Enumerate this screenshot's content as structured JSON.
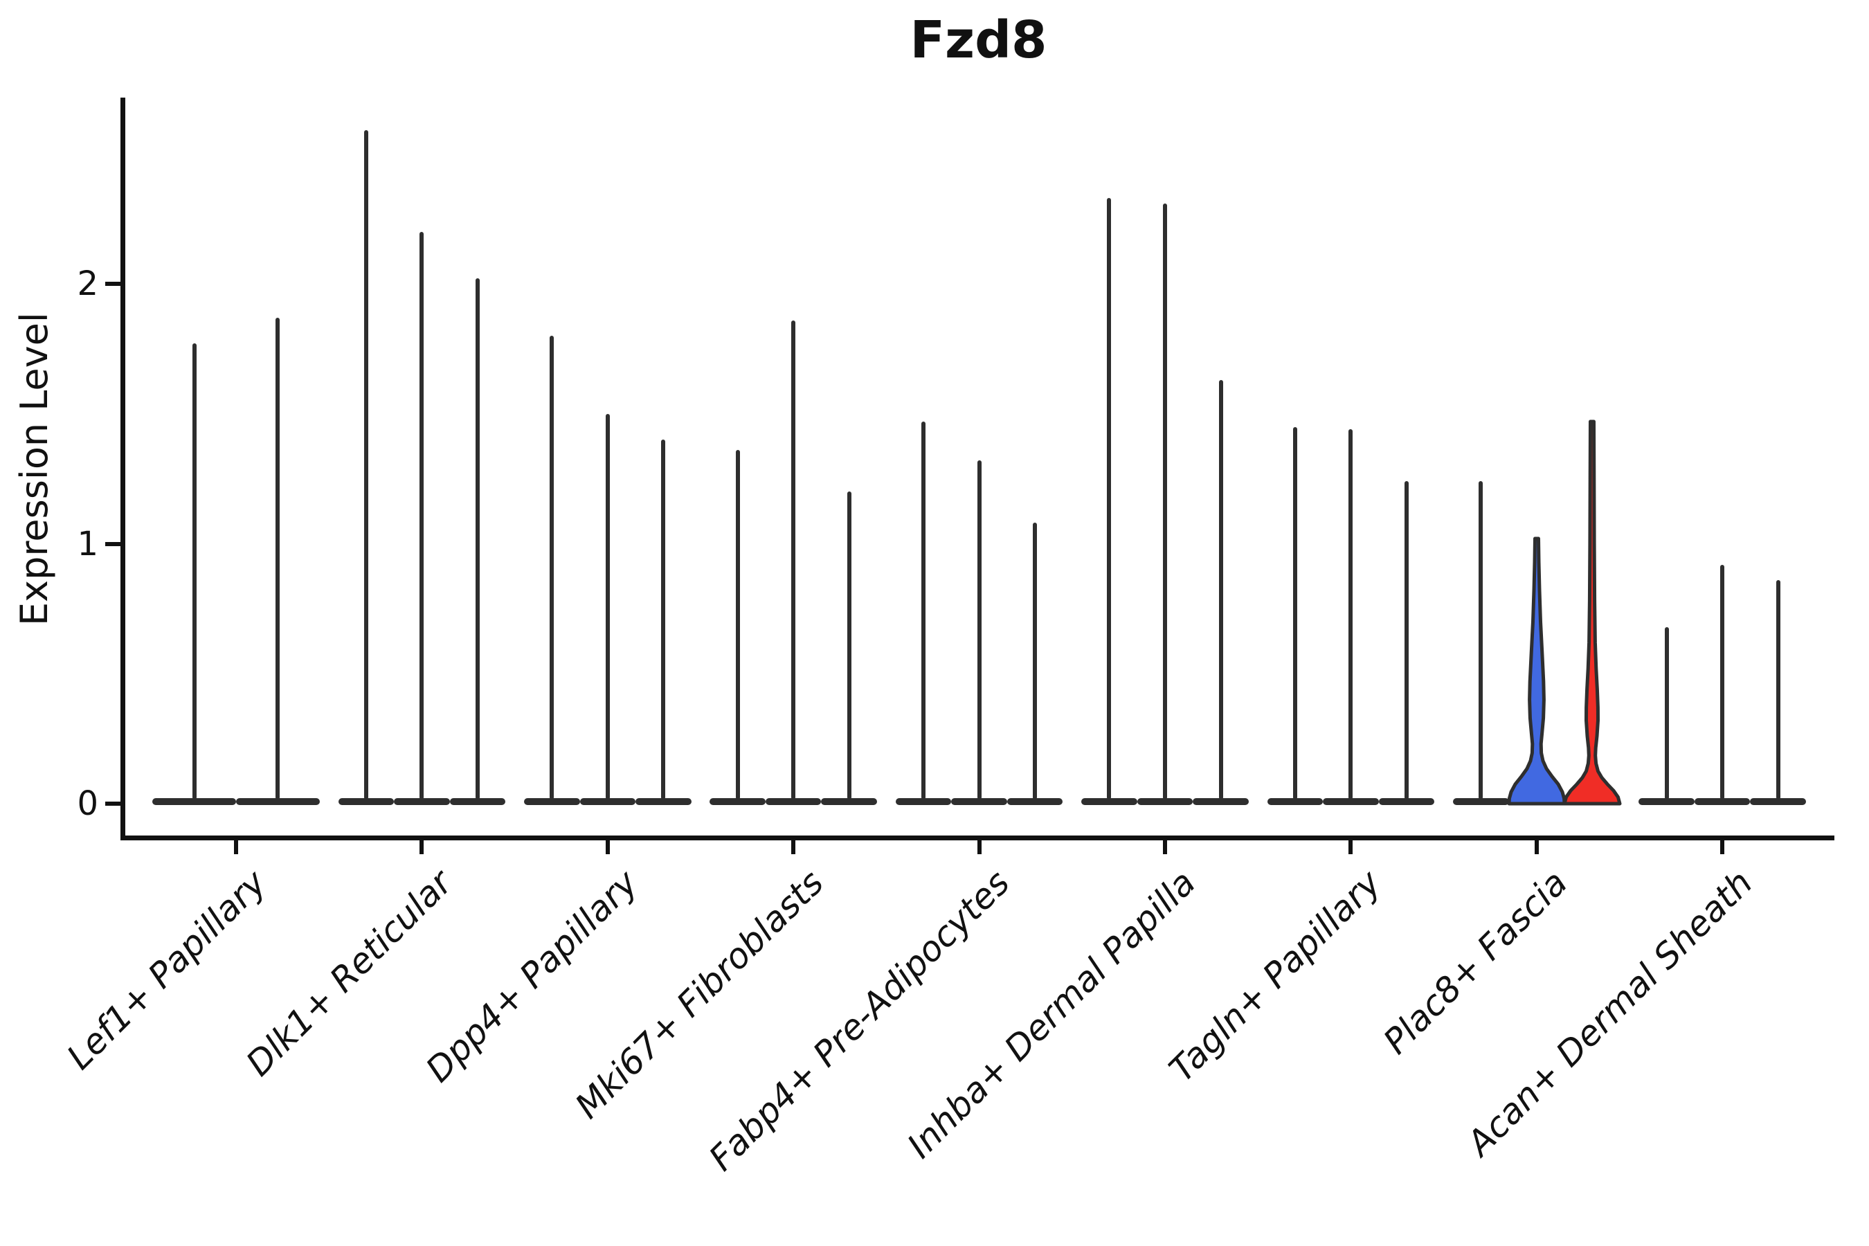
{
  "title": "Fzd8",
  "ylabel": "Expression Level",
  "chart_data": {
    "type": "violin",
    "title": "Fzd8",
    "xlabel": "",
    "ylabel": "Expression Level",
    "ylim": [
      0,
      2.72
    ],
    "yticks": [
      0,
      1,
      2
    ],
    "grid": false,
    "legend_position": "none",
    "ink_color": "#2e2e2e",
    "axis_color": "#111111",
    "categories": [
      "Lef1+ Papillary",
      "Dlk1+ Reticular",
      "Dpp4+ Papillary",
      "Mki67+ Fibroblasts",
      "Fabp4+ Pre-Adipocytes",
      "Inhba+ Dermal Papilla",
      "Tagln+ Papillary",
      "Plac8+ Fascia",
      "Acan+ Dermal Sheath"
    ],
    "description": "Violin plot of Fzd8 expression; each cluster has 2-3 very thin violins (expression concentrated at 0 with narrow tails up to the listed maximum). In the Plac8+ Fascia cluster one violin is filled blue and one red, showing visible density bulges near zero.",
    "groups": [
      {
        "category": "Lef1+ Papillary",
        "violins": [
          {
            "max": 1.77
          },
          {
            "max": 1.87
          }
        ]
      },
      {
        "category": "Dlk1+ Reticular",
        "violins": [
          {
            "max": 2.59
          },
          {
            "max": 2.2
          },
          {
            "max": 2.02
          }
        ]
      },
      {
        "category": "Dpp4+ Papillary",
        "violins": [
          {
            "max": 1.8
          },
          {
            "max": 1.5
          },
          {
            "max": 1.4
          }
        ]
      },
      {
        "category": "Mki67+ Fibroblasts",
        "violins": [
          {
            "max": 1.36
          },
          {
            "max": 1.86
          },
          {
            "max": 1.2
          }
        ]
      },
      {
        "category": "Fabp4+ Pre-Adipocytes",
        "violins": [
          {
            "max": 1.47
          },
          {
            "max": 1.32
          },
          {
            "max": 1.08
          }
        ]
      },
      {
        "category": "Inhba+ Dermal Papilla",
        "violins": [
          {
            "max": 2.33
          },
          {
            "max": 2.31
          },
          {
            "max": 1.63
          }
        ]
      },
      {
        "category": "Tagln+ Papillary",
        "violins": [
          {
            "max": 1.45
          },
          {
            "max": 1.44
          },
          {
            "max": 1.24
          }
        ]
      },
      {
        "category": "Plac8+ Fascia",
        "violins": [
          {
            "max": 1.24
          },
          {
            "max": 1.02,
            "fill": "#4169E1",
            "profile": [
              [
                1.02,
                2.5
              ],
              [
                0.93,
                3.0
              ],
              [
                0.82,
                4.0
              ],
              [
                0.7,
                5.5
              ],
              [
                0.58,
                7.8
              ],
              [
                0.47,
                9.8
              ],
              [
                0.4,
                10.4
              ],
              [
                0.33,
                9.6
              ],
              [
                0.27,
                7.6
              ],
              [
                0.23,
                6.2
              ],
              [
                0.195,
                6.6
              ],
              [
                0.165,
                9.0
              ],
              [
                0.135,
                14.0
              ],
              [
                0.105,
                22.0
              ],
              [
                0.075,
                31.0
              ],
              [
                0.045,
                37.0
              ],
              [
                0.02,
                39.6
              ],
              [
                0.0,
                40.0
              ]
            ]
          },
          {
            "max": 1.47,
            "fill": "#F02D26",
            "profile": [
              [
                1.47,
                2.5
              ],
              [
                1.25,
                2.8
              ],
              [
                1.0,
                3.1
              ],
              [
                0.78,
                3.6
              ],
              [
                0.62,
                4.4
              ],
              [
                0.52,
                5.8
              ],
              [
                0.44,
                7.4
              ],
              [
                0.37,
                8.4
              ],
              [
                0.32,
                8.5
              ],
              [
                0.26,
                7.0
              ],
              [
                0.215,
                5.2
              ],
              [
                0.185,
                4.7
              ],
              [
                0.155,
                5.6
              ],
              [
                0.125,
                8.5
              ],
              [
                0.1,
                14.0
              ],
              [
                0.075,
                22.0
              ],
              [
                0.05,
                31.0
              ],
              [
                0.025,
                37.5
              ],
              [
                0.0,
                40.0
              ]
            ]
          }
        ]
      },
      {
        "category": "Acan+ Dermal Sheath",
        "violins": [
          {
            "max": 0.68
          },
          {
            "max": 0.92
          },
          {
            "max": 0.86
          }
        ]
      }
    ]
  }
}
